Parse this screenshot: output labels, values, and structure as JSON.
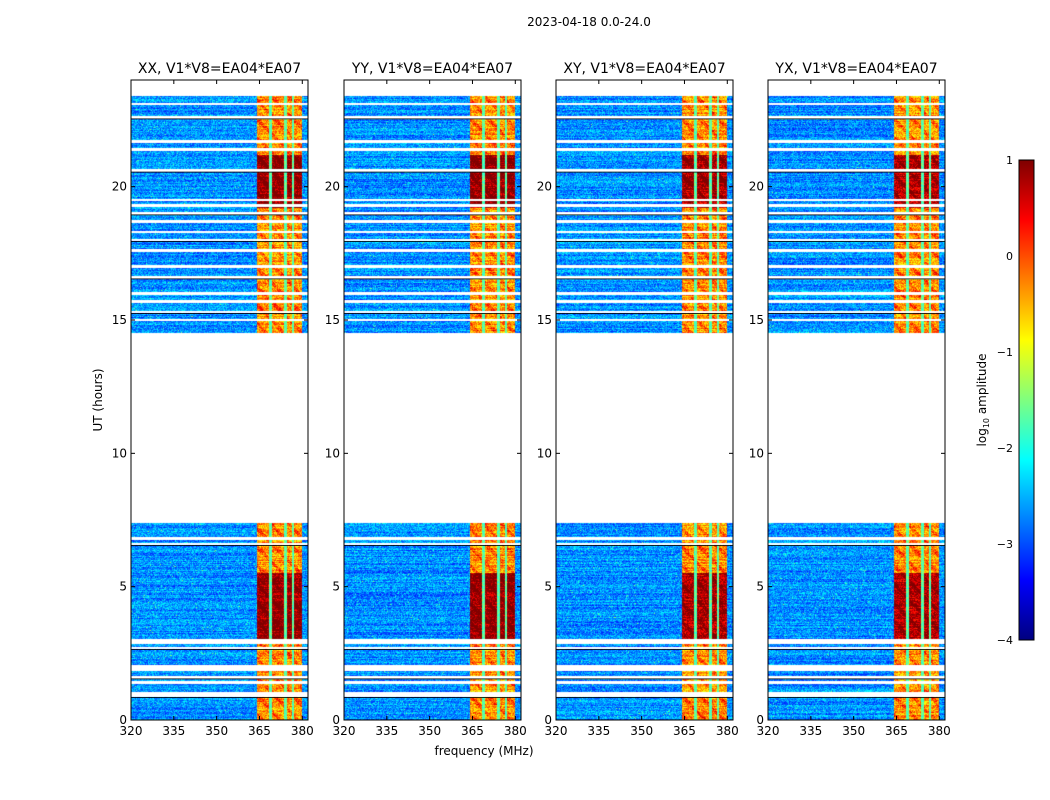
{
  "suptitle": "2023-04-18 0.0-24.0",
  "chart_data": [
    {
      "type": "heatmap",
      "title": "XX, V1*V8=EA04*EA07",
      "xlim": [
        320,
        382
      ],
      "ylim": [
        0,
        24
      ],
      "xticks": [
        "320",
        "335",
        "350",
        "365",
        "380"
      ],
      "yticks": [
        "0",
        "5",
        "10",
        "15",
        "20"
      ],
      "strength": 1.15
    },
    {
      "type": "heatmap",
      "title": "YY, V1*V8=EA04*EA07",
      "xlim": [
        320,
        382
      ],
      "ylim": [
        0,
        24
      ],
      "xticks": [
        "320",
        "335",
        "350",
        "365",
        "380"
      ],
      "yticks": [
        "0",
        "5",
        "10",
        "15",
        "20"
      ],
      "strength": 1.2
    },
    {
      "type": "heatmap",
      "title": "XY, V1*V8=EA04*EA07",
      "xlim": [
        320,
        382
      ],
      "ylim": [
        0,
        24
      ],
      "xticks": [
        "320",
        "335",
        "350",
        "365",
        "380"
      ],
      "yticks": [
        "0",
        "5",
        "10",
        "15",
        "20"
      ],
      "strength": 1.05
    },
    {
      "type": "heatmap",
      "title": "YX, V1*V8=EA04*EA07",
      "xlim": [
        320,
        382
      ],
      "ylim": [
        0,
        24
      ],
      "xticks": [
        "320",
        "335",
        "350",
        "365",
        "380"
      ],
      "yticks": [
        "0",
        "5",
        "10",
        "15",
        "20"
      ],
      "strength": 1.0
    }
  ],
  "data_model": {
    "data_time_ranges_hours": [
      [
        0,
        7.4
      ],
      [
        14.5,
        23.4
      ]
    ],
    "bright_band_mhz": [
      364,
      380
    ],
    "bright_subbands_mhz": [
      [
        364,
        368.5
      ],
      [
        369.5,
        373.5
      ],
      [
        374.5,
        376.5
      ],
      [
        377,
        380
      ]
    ],
    "flagged_times_hours": [
      0.9,
      1.0,
      1.4,
      1.6,
      1.9,
      2.0,
      2.7,
      2.9,
      3.0,
      6.6,
      6.8,
      15.0,
      15.3,
      15.7,
      16.0,
      16.6,
      17.0,
      17.6,
      18.0,
      18.3,
      18.7,
      19.0,
      19.3,
      19.5,
      20.6,
      21.4,
      21.7,
      22.6,
      23.1
    ],
    "hot_times_hours": [
      [
        19.2,
        21.2
      ],
      [
        3.0,
        5.5
      ]
    ]
  },
  "xlabel": "frequency (MHz)",
  "ylabel": "UT (hours)",
  "colorbar": {
    "label": "log",
    "label_sub": "10",
    "label_rest": " amplitude",
    "min": -4,
    "max": 1,
    "ticks": [
      "1",
      "0",
      "−1",
      "−2",
      "−3",
      "−4"
    ],
    "stops": [
      "#00007f",
      "#0000ff",
      "#007fff",
      "#00ffff",
      "#7fff7f",
      "#ffff00",
      "#ff7f00",
      "#ff0000",
      "#7f0000"
    ]
  }
}
